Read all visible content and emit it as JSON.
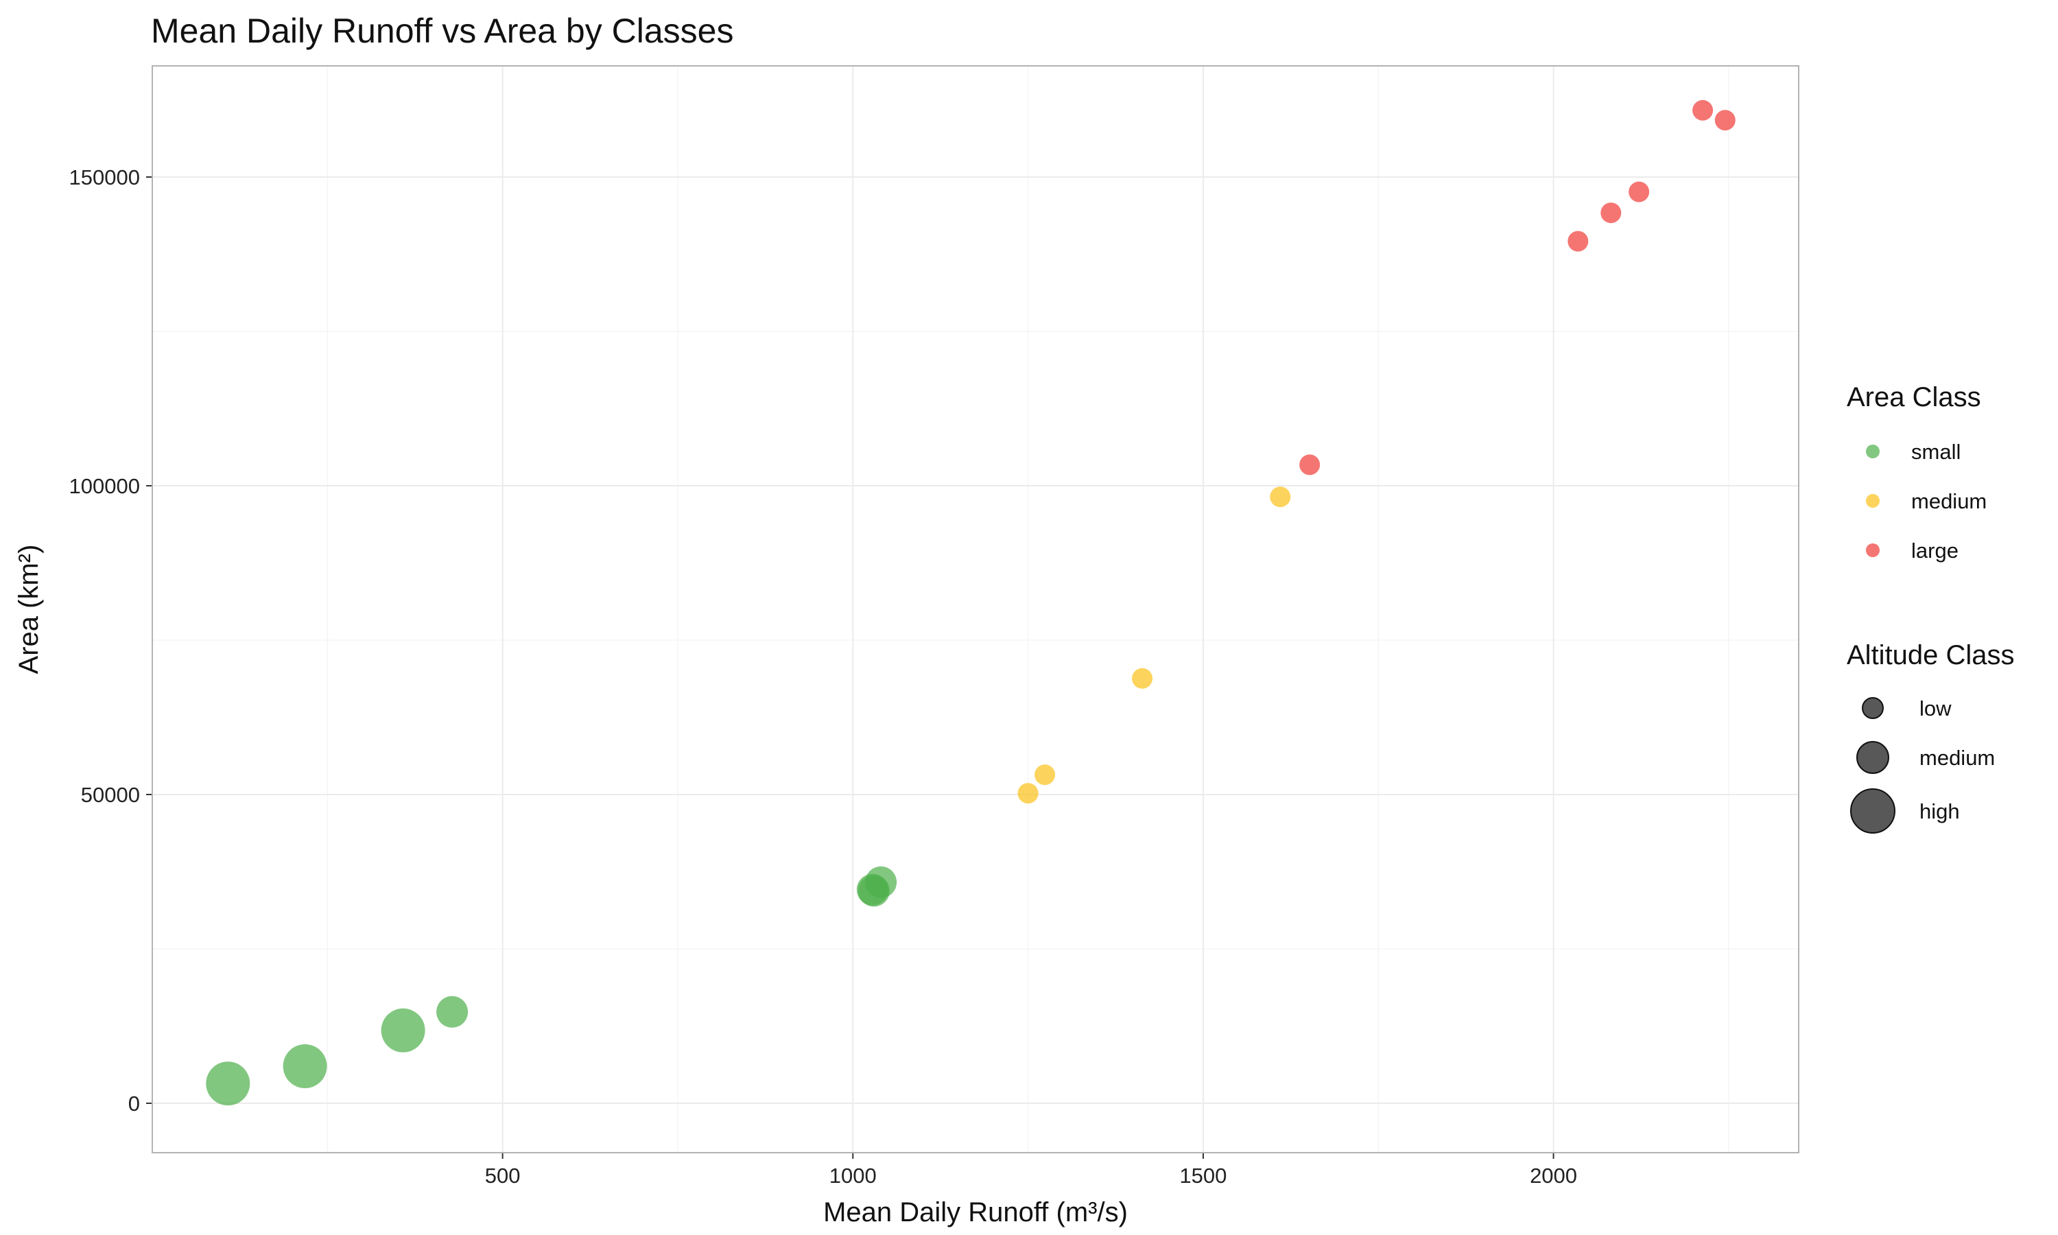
{
  "chart_data": {
    "type": "scatter",
    "title": "Mean Daily Runoff vs Area by Classes",
    "xlabel": "Mean Daily Runoff (m³/s)",
    "ylabel": "Area (km²)",
    "xlim": [
      0,
      2350
    ],
    "ylim": [
      -8000,
      168000
    ],
    "x_ticks": [
      500,
      1000,
      1500,
      2000
    ],
    "y_ticks": [
      0,
      50000,
      100000,
      150000
    ],
    "grid": true,
    "legend_position": "right",
    "colors": {
      "small": "#4daf4a",
      "medium": "#fbc117",
      "large": "#ef3b36"
    },
    "area_class_legend": {
      "title": "Area Class",
      "items": [
        {
          "key": "small",
          "label": "small"
        },
        {
          "key": "medium",
          "label": "medium"
        },
        {
          "key": "large",
          "label": "large"
        }
      ]
    },
    "altitude_class_legend": {
      "title": "Altitude Class",
      "items": [
        {
          "key": "low",
          "label": "low"
        },
        {
          "key": "medium",
          "label": "medium"
        },
        {
          "key": "high",
          "label": "high"
        }
      ]
    },
    "points": [
      {
        "x": 108,
        "y": 3200,
        "area_class": "small",
        "altitude_class": "high"
      },
      {
        "x": 218,
        "y": 6000,
        "area_class": "small",
        "altitude_class": "high"
      },
      {
        "x": 358,
        "y": 11800,
        "area_class": "small",
        "altitude_class": "high"
      },
      {
        "x": 428,
        "y": 14800,
        "area_class": "small",
        "altitude_class": "medium"
      },
      {
        "x": 1040,
        "y": 35800,
        "area_class": "small",
        "altitude_class": "medium"
      },
      {
        "x": 1030,
        "y": 34400,
        "area_class": "small",
        "altitude_class": "medium"
      },
      {
        "x": 1028,
        "y": 34600,
        "area_class": "small",
        "altitude_class": "medium"
      },
      {
        "x": 1250,
        "y": 50200,
        "area_class": "medium",
        "altitude_class": "low"
      },
      {
        "x": 1274,
        "y": 53200,
        "area_class": "medium",
        "altitude_class": "low"
      },
      {
        "x": 1413,
        "y": 68800,
        "area_class": "medium",
        "altitude_class": "low"
      },
      {
        "x": 1610,
        "y": 98200,
        "area_class": "medium",
        "altitude_class": "low"
      },
      {
        "x": 1652,
        "y": 103400,
        "area_class": "large",
        "altitude_class": "low"
      },
      {
        "x": 2035,
        "y": 139600,
        "area_class": "large",
        "altitude_class": "low"
      },
      {
        "x": 2082,
        "y": 144200,
        "area_class": "large",
        "altitude_class": "low"
      },
      {
        "x": 2122,
        "y": 147600,
        "area_class": "large",
        "altitude_class": "low"
      },
      {
        "x": 2213,
        "y": 160800,
        "area_class": "large",
        "altitude_class": "low"
      },
      {
        "x": 2245,
        "y": 159200,
        "area_class": "large",
        "altitude_class": "low"
      }
    ]
  }
}
